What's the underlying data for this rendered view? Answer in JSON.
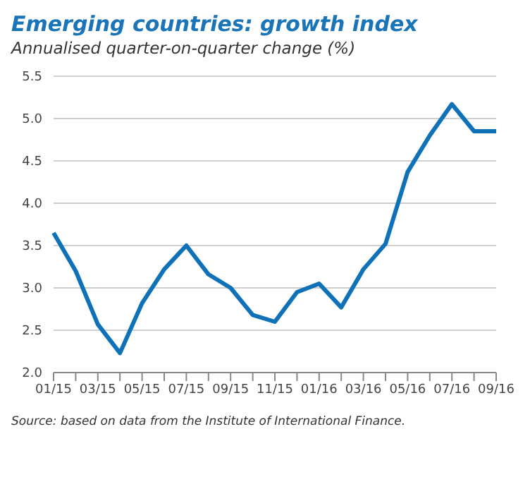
{
  "chart_data": {
    "type": "line",
    "title": "Emerging countries: growth index",
    "subtitle": "Annualised quarter-on-quarter change (%)",
    "categories": [
      "01/15",
      null,
      "03/15",
      null,
      "05/15",
      null,
      "07/15",
      null,
      "09/15",
      null,
      "11/15",
      null,
      "01/16",
      null,
      "03/16",
      null,
      "05/16",
      null,
      "07/16",
      null,
      "09/16"
    ],
    "series": [
      {
        "color": "#0f72b8",
        "values": [
          3.65,
          3.2,
          2.57,
          2.23,
          2.82,
          3.22,
          3.5,
          3.16,
          3.0,
          2.68,
          2.6,
          2.95,
          3.05,
          2.77,
          3.22,
          3.52,
          4.37,
          4.8,
          5.17,
          4.85,
          4.85
        ]
      }
    ],
    "ylim": [
      2.0,
      5.5
    ],
    "yticks": [
      {
        "value": 2,
        "label": "2.0"
      },
      2.5,
      {
        "value": 3,
        "label": "3.0"
      },
      3.5,
      {
        "value": 4,
        "label": "4.0"
      },
      4.5,
      {
        "value": 5,
        "label": "5.0"
      },
      5.5
    ],
    "grid": "y",
    "legend": false,
    "marker": "none",
    "line_style": "solid",
    "annotations": [
      "Source: based on data from the Institute of International Finance."
    ]
  }
}
